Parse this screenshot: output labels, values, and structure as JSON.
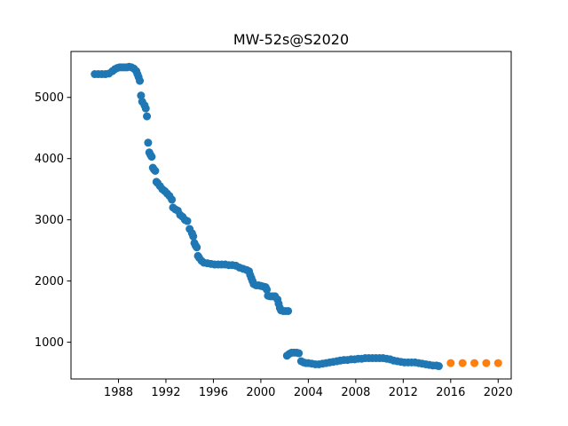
{
  "chart_data": {
    "type": "scatter",
    "title": "MW-52s@S2020",
    "xlabel": "",
    "ylabel": "",
    "xlim": [
      1984.0,
      2021.1
    ],
    "ylim": [
      400,
      5750
    ],
    "x_ticks": [
      "1988",
      "1992",
      "1996",
      "2000",
      "2004",
      "2008",
      "2012",
      "2016",
      "2020"
    ],
    "y_ticks": [
      "1000",
      "2000",
      "3000",
      "4000",
      "5000"
    ],
    "grid": false,
    "legend": "none",
    "series": [
      {
        "color": "#1f77b4",
        "points": [
          [
            1986.0,
            5380
          ],
          [
            1986.3,
            5380
          ],
          [
            1986.6,
            5380
          ],
          [
            1986.9,
            5380
          ],
          [
            1987.2,
            5390
          ],
          [
            1987.5,
            5430
          ],
          [
            1987.7,
            5460
          ],
          [
            1987.9,
            5480
          ],
          [
            1988.1,
            5490
          ],
          [
            1988.3,
            5490
          ],
          [
            1988.5,
            5490
          ],
          [
            1988.7,
            5490
          ],
          [
            1988.9,
            5500
          ],
          [
            1989.1,
            5490
          ],
          [
            1989.3,
            5470
          ],
          [
            1989.5,
            5430
          ],
          [
            1989.6,
            5380
          ],
          [
            1989.7,
            5330
          ],
          [
            1989.8,
            5270
          ],
          [
            1989.9,
            5030
          ],
          [
            1990.0,
            4930
          ],
          [
            1990.2,
            4870
          ],
          [
            1990.3,
            4820
          ],
          [
            1990.4,
            4690
          ],
          [
            1990.5,
            4260
          ],
          [
            1990.6,
            4100
          ],
          [
            1990.7,
            4060
          ],
          [
            1990.8,
            4030
          ],
          [
            1990.9,
            3850
          ],
          [
            1991.0,
            3820
          ],
          [
            1991.1,
            3800
          ],
          [
            1991.2,
            3620
          ],
          [
            1991.3,
            3600
          ],
          [
            1991.5,
            3550
          ],
          [
            1991.7,
            3500
          ],
          [
            1991.9,
            3470
          ],
          [
            1992.1,
            3430
          ],
          [
            1992.3,
            3390
          ],
          [
            1992.5,
            3330
          ],
          [
            1992.6,
            3200
          ],
          [
            1992.8,
            3170
          ],
          [
            1993.0,
            3150
          ],
          [
            1993.2,
            3080
          ],
          [
            1993.4,
            3050
          ],
          [
            1993.6,
            3000
          ],
          [
            1993.8,
            2980
          ],
          [
            1994.0,
            2850
          ],
          [
            1994.2,
            2780
          ],
          [
            1994.3,
            2730
          ],
          [
            1994.4,
            2620
          ],
          [
            1994.5,
            2580
          ],
          [
            1994.6,
            2550
          ],
          [
            1994.7,
            2410
          ],
          [
            1994.8,
            2380
          ],
          [
            1995.0,
            2330
          ],
          [
            1995.2,
            2300
          ],
          [
            1995.5,
            2290
          ],
          [
            1995.8,
            2280
          ],
          [
            1996.1,
            2270
          ],
          [
            1996.4,
            2270
          ],
          [
            1996.7,
            2270
          ],
          [
            1997.0,
            2270
          ],
          [
            1997.3,
            2260
          ],
          [
            1997.6,
            2260
          ],
          [
            1997.9,
            2250
          ],
          [
            1998.2,
            2220
          ],
          [
            1998.5,
            2200
          ],
          [
            1998.8,
            2180
          ],
          [
            1999.0,
            2160
          ],
          [
            1999.1,
            2100
          ],
          [
            1999.2,
            2050
          ],
          [
            1999.3,
            2000
          ],
          [
            1999.4,
            1950
          ],
          [
            1999.6,
            1930
          ],
          [
            1999.8,
            1930
          ],
          [
            2000.0,
            1920
          ],
          [
            2000.2,
            1910
          ],
          [
            2000.4,
            1900
          ],
          [
            2000.5,
            1860
          ],
          [
            2000.6,
            1760
          ],
          [
            2000.8,
            1750
          ],
          [
            2001.0,
            1750
          ],
          [
            2001.2,
            1750
          ],
          [
            2001.4,
            1700
          ],
          [
            2001.5,
            1630
          ],
          [
            2001.6,
            1560
          ],
          [
            2001.7,
            1520
          ],
          [
            2001.9,
            1510
          ],
          [
            2002.1,
            1510
          ],
          [
            2002.3,
            1510
          ],
          [
            2002.2,
            780
          ],
          [
            2002.4,
            810
          ],
          [
            2002.6,
            830
          ],
          [
            2002.8,
            830
          ],
          [
            2003.0,
            830
          ],
          [
            2003.2,
            820
          ],
          [
            2003.4,
            690
          ],
          [
            2003.6,
            670
          ],
          [
            2003.8,
            660
          ],
          [
            2004.0,
            660
          ],
          [
            2004.3,
            650
          ],
          [
            2004.6,
            640
          ],
          [
            2004.9,
            640
          ],
          [
            2005.2,
            650
          ],
          [
            2005.5,
            660
          ],
          [
            2005.8,
            670
          ],
          [
            2006.1,
            680
          ],
          [
            2006.4,
            690
          ],
          [
            2006.7,
            700
          ],
          [
            2007.0,
            710
          ],
          [
            2007.3,
            710
          ],
          [
            2007.6,
            720
          ],
          [
            2007.9,
            720
          ],
          [
            2008.2,
            730
          ],
          [
            2008.5,
            730
          ],
          [
            2008.8,
            740
          ],
          [
            2009.1,
            740
          ],
          [
            2009.4,
            740
          ],
          [
            2009.7,
            740
          ],
          [
            2010.0,
            740
          ],
          [
            2010.3,
            740
          ],
          [
            2010.6,
            730
          ],
          [
            2010.9,
            720
          ],
          [
            2011.2,
            700
          ],
          [
            2011.5,
            690
          ],
          [
            2011.8,
            680
          ],
          [
            2012.1,
            670
          ],
          [
            2012.4,
            670
          ],
          [
            2012.7,
            670
          ],
          [
            2013.0,
            670
          ],
          [
            2013.3,
            660
          ],
          [
            2013.6,
            650
          ],
          [
            2013.9,
            640
          ],
          [
            2014.2,
            630
          ],
          [
            2014.5,
            620
          ],
          [
            2014.8,
            620
          ],
          [
            2015.0,
            610
          ]
        ]
      },
      {
        "color": "#ff7f0e",
        "points": [
          [
            2016.0,
            660
          ],
          [
            2017.0,
            660
          ],
          [
            2018.0,
            660
          ],
          [
            2019.0,
            660
          ],
          [
            2020.0,
            660
          ]
        ]
      }
    ]
  }
}
